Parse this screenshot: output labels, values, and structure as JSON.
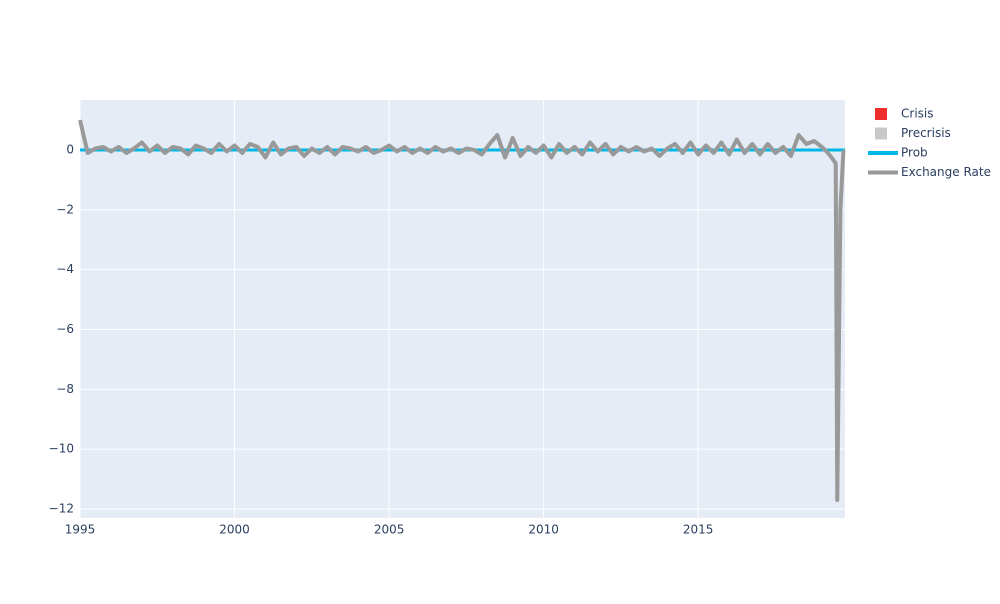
{
  "chart_data": {
    "type": "line",
    "xlim": [
      1995,
      2019.75
    ],
    "xticks": [
      1995,
      2000,
      2005,
      2010,
      2015
    ],
    "ylim": [
      -12.3,
      1.67
    ],
    "yticks": [
      0,
      {
        "value": -2,
        "label": "−2"
      },
      {
        "value": -4,
        "label": "−4"
      },
      {
        "value": -6,
        "label": "−6"
      },
      {
        "value": -8,
        "label": "−8"
      },
      {
        "value": -10,
        "label": "−10"
      },
      {
        "value": -12,
        "label": "−12"
      }
    ],
    "grid": true,
    "legend": "right",
    "series": [
      {
        "name": "Crisis",
        "type": "bar",
        "color": "#ef2d2d",
        "x": [],
        "values": []
      },
      {
        "name": "Precrisis",
        "type": "bar",
        "color": "#c8c8c8",
        "x": [],
        "values": []
      },
      {
        "name": "Prob",
        "type": "line",
        "color": "#00b8e6",
        "x": [
          1995,
          2019.75
        ],
        "values": [
          0,
          0
        ]
      },
      {
        "name": "Exchange Rate",
        "type": "line",
        "color": "#999999",
        "x": [
          1995,
          1995.25,
          1995.5,
          1995.75,
          1996,
          1996.25,
          1996.5,
          1996.75,
          1997,
          1997.25,
          1997.5,
          1997.75,
          1998,
          1998.25,
          1998.5,
          1998.75,
          1999,
          1999.25,
          1999.5,
          1999.75,
          2000,
          2000.25,
          2000.5,
          2000.75,
          2001,
          2001.25,
          2001.5,
          2001.75,
          2002,
          2002.25,
          2002.5,
          2002.75,
          2003,
          2003.25,
          2003.5,
          2003.75,
          2004,
          2004.25,
          2004.5,
          2004.75,
          2005,
          2005.25,
          2005.5,
          2005.75,
          2006,
          2006.25,
          2006.5,
          2006.75,
          2007,
          2007.25,
          2007.5,
          2007.75,
          2008,
          2008.25,
          2008.5,
          2008.75,
          2009,
          2009.25,
          2009.5,
          2009.75,
          2010,
          2010.25,
          2010.5,
          2010.75,
          2011,
          2011.25,
          2011.5,
          2011.75,
          2012,
          2012.25,
          2012.5,
          2012.75,
          2013,
          2013.25,
          2013.5,
          2013.75,
          2014,
          2014.25,
          2014.5,
          2014.75,
          2015,
          2015.25,
          2015.5,
          2015.75,
          2016,
          2016.25,
          2016.5,
          2016.75,
          2017,
          2017.25,
          2017.5,
          2017.75,
          2018,
          2018.25,
          2018.5,
          2018.75,
          2019,
          2019.2,
          2019.35,
          2019.45,
          2019.5,
          2019.6,
          2019.7
        ],
        "values": [
          1.0,
          -0.1,
          0.05,
          0.1,
          -0.05,
          0.1,
          -0.1,
          0.05,
          0.25,
          -0.05,
          0.15,
          -0.1,
          0.1,
          0.05,
          -0.15,
          0.15,
          0.05,
          -0.1,
          0.2,
          -0.05,
          0.15,
          -0.1,
          0.2,
          0.1,
          -0.25,
          0.25,
          -0.15,
          0.05,
          0.1,
          -0.2,
          0.05,
          -0.1,
          0.1,
          -0.15,
          0.1,
          0.05,
          -0.05,
          0.1,
          -0.1,
          0.0,
          0.15,
          -0.05,
          0.1,
          -0.1,
          0.05,
          -0.1,
          0.1,
          -0.05,
          0.05,
          -0.1,
          0.05,
          0.0,
          -0.15,
          0.2,
          0.5,
          -0.25,
          0.4,
          -0.2,
          0.1,
          -0.1,
          0.15,
          -0.25,
          0.2,
          -0.1,
          0.1,
          -0.15,
          0.25,
          -0.05,
          0.2,
          -0.15,
          0.1,
          -0.05,
          0.1,
          -0.05,
          0.05,
          -0.2,
          0.05,
          0.2,
          -0.1,
          0.25,
          -0.15,
          0.15,
          -0.1,
          0.25,
          -0.15,
          0.35,
          -0.1,
          0.2,
          -0.15,
          0.2,
          -0.1,
          0.1,
          -0.2,
          0.5,
          0.2,
          0.3,
          0.1,
          -0.1,
          -0.3,
          -0.45,
          -11.7,
          -2.0,
          0.0
        ]
      }
    ]
  }
}
